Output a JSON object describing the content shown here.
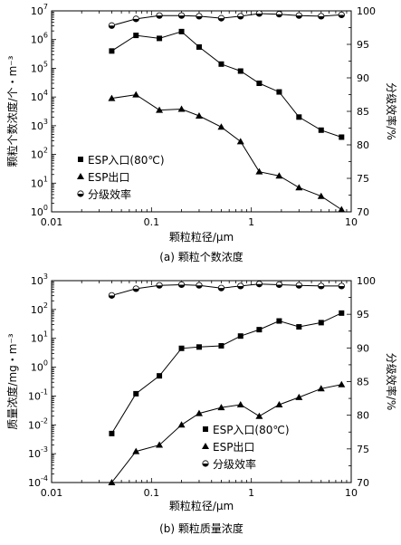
{
  "chart_data": [
    {
      "type": "line",
      "caption": "(a) 颗粒个数浓度",
      "xlabel": "颗粒粒径/μm",
      "ylabel": "颗粒个数浓度/个・m⁻³",
      "y2label": "分级效率/%",
      "xscale": "log",
      "xlim": [
        0.01,
        10
      ],
      "xticks": [
        "0.01",
        "0.1",
        "1",
        "10"
      ],
      "ylim_exp": [
        0,
        7
      ],
      "y2lim": [
        70,
        100
      ],
      "y2ticks": [
        "70",
        "75",
        "80",
        "85",
        "90",
        "95",
        "100"
      ],
      "legend_position": "lower-left",
      "x": [
        0.04,
        0.07,
        0.12,
        0.2,
        0.3,
        0.5,
        0.78,
        1.2,
        1.9,
        3.0,
        5.0,
        8.0
      ],
      "series": [
        {
          "name": "ESP入口(80℃)",
          "marker": "square",
          "axis": "left",
          "values": [
            400000,
            1400000,
            1100000,
            1900000,
            550000,
            140000,
            80000,
            30000,
            15000,
            2000,
            700,
            400
          ]
        },
        {
          "name": "ESP出口",
          "marker": "triangle",
          "axis": "left",
          "values": [
            9000,
            12000,
            3500,
            3800,
            2200,
            900,
            280,
            25,
            18,
            7,
            3.5,
            1.2
          ]
        },
        {
          "name": "分级效率",
          "marker": "half-circle",
          "axis": "right",
          "values": [
            97.8,
            98.8,
            99.3,
            99.3,
            99.2,
            98.9,
            99.2,
            99.6,
            99.5,
            99.3,
            99.2,
            99.4
          ]
        }
      ]
    },
    {
      "type": "line",
      "caption": "(b) 颗粒质量浓度",
      "xlabel": "颗粒粒径/μm",
      "ylabel": "质量浓度/mg・m⁻³",
      "y2label": "分级效率/%",
      "xscale": "log",
      "xlim": [
        0.01,
        10
      ],
      "xticks": [
        "0.01",
        "0.1",
        "1",
        "10"
      ],
      "ylim_exp": [
        -4,
        3
      ],
      "y2lim": [
        70,
        100
      ],
      "y2ticks": [
        "70",
        "75",
        "80",
        "85",
        "90",
        "95",
        "100"
      ],
      "legend_position": "lower-right",
      "x": [
        0.04,
        0.07,
        0.12,
        0.2,
        0.3,
        0.5,
        0.78,
        1.2,
        1.9,
        3.0,
        5.0,
        8.0
      ],
      "series": [
        {
          "name": "ESP入口(80℃)",
          "marker": "square",
          "axis": "left",
          "values": [
            0.005,
            0.12,
            0.5,
            4.5,
            5,
            5.5,
            12,
            20,
            40,
            25,
            35,
            75
          ]
        },
        {
          "name": "ESP出口",
          "marker": "triangle",
          "axis": "left",
          "values": [
            0.0001,
            0.0012,
            0.002,
            0.01,
            0.025,
            0.04,
            0.05,
            0.02,
            0.05,
            0.09,
            0.18,
            0.25
          ]
        },
        {
          "name": "分级效率",
          "marker": "half-circle",
          "axis": "right",
          "values": [
            97.8,
            98.8,
            99.3,
            99.4,
            99.3,
            98.9,
            99.2,
            99.5,
            99.4,
            99.3,
            99.2,
            99.2
          ]
        }
      ]
    }
  ]
}
